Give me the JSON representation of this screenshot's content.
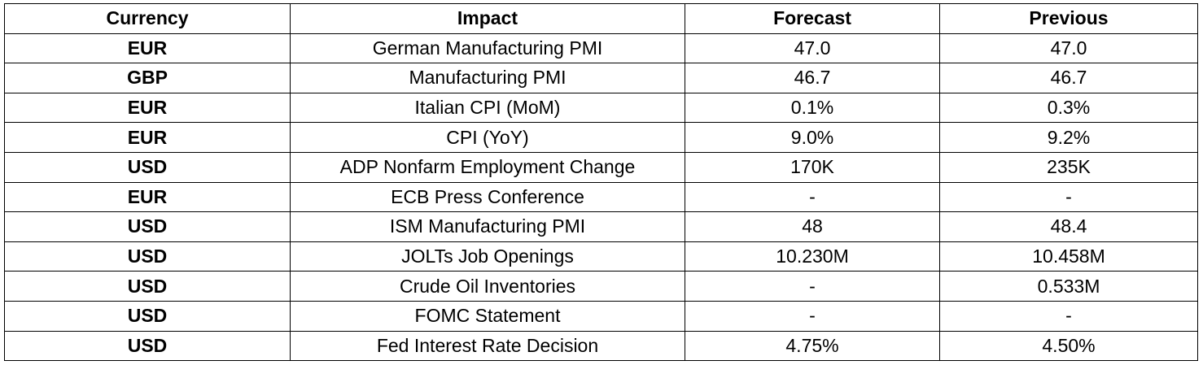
{
  "table": {
    "headers": [
      "Currency",
      "Impact",
      "Forecast",
      "Previous"
    ],
    "rows": [
      [
        "EUR",
        "German Manufacturing PMI",
        "47.0",
        "47.0"
      ],
      [
        "GBP",
        "Manufacturing PMI",
        "46.7",
        "46.7"
      ],
      [
        "EUR",
        "Italian CPI (MoM)",
        "0.1%",
        "0.3%"
      ],
      [
        "EUR",
        "CPI (YoY)",
        "9.0%",
        "9.2%"
      ],
      [
        "USD",
        "ADP Nonfarm Employment Change",
        "170K",
        "235K"
      ],
      [
        "EUR",
        "ECB Press Conference",
        "-",
        "-"
      ],
      [
        "USD",
        "ISM Manufacturing PMI",
        "48",
        "48.4"
      ],
      [
        "USD",
        "JOLTs Job Openings",
        "10.230M",
        "10.458M"
      ],
      [
        "USD",
        "Crude Oil Inventories",
        "-",
        "0.533M"
      ],
      [
        "USD",
        "FOMC Statement",
        "-",
        "-"
      ],
      [
        "USD",
        "Fed Interest Rate Decision",
        "4.75%",
        "4.50%"
      ]
    ]
  }
}
